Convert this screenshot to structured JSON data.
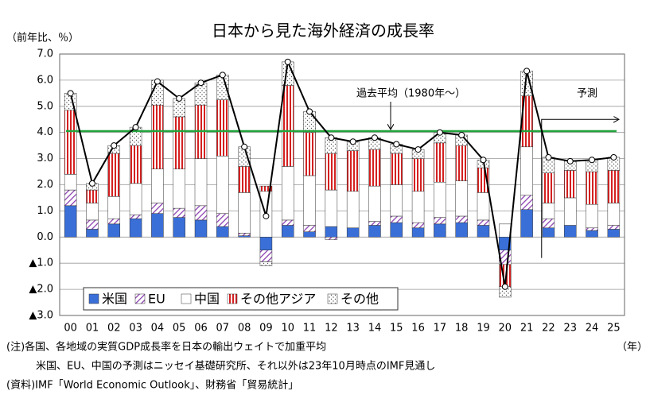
{
  "chart_data": {
    "type": "stacked-bar-line",
    "title": "日本から見た海外経済の成長率",
    "y_label": "（前年比、％）",
    "x_label": "（年）",
    "categories": [
      "00",
      "01",
      "02",
      "03",
      "04",
      "05",
      "06",
      "07",
      "08",
      "09",
      "10",
      "11",
      "12",
      "13",
      "14",
      "15",
      "16",
      "17",
      "18",
      "19",
      "20",
      "21",
      "22",
      "23",
      "24",
      "25"
    ],
    "series": [
      {
        "name": "米国",
        "color": "#3a6fd8",
        "style": "solid",
        "values": [
          1.2,
          0.3,
          0.5,
          0.7,
          0.9,
          0.75,
          0.65,
          0.4,
          0.05,
          -0.5,
          0.45,
          0.2,
          0.4,
          0.35,
          0.45,
          0.55,
          0.35,
          0.5,
          0.55,
          0.45,
          -0.5,
          1.05,
          0.35,
          0.45,
          0.25,
          0.3
        ]
      },
      {
        "name": "EU",
        "color": "#8a3cb0",
        "style": "hatch",
        "values": [
          0.6,
          0.35,
          0.2,
          0.15,
          0.4,
          0.35,
          0.55,
          0.5,
          0.1,
          -0.45,
          0.2,
          0.25,
          -0.1,
          0.0,
          0.15,
          0.25,
          0.2,
          0.25,
          0.25,
          0.2,
          -0.55,
          0.55,
          0.35,
          0.0,
          0.1,
          0.15
        ]
      },
      {
        "name": "中国",
        "color": "#ffffff",
        "style": "solid",
        "values": [
          0.6,
          0.65,
          0.85,
          1.2,
          1.3,
          1.5,
          1.8,
          2.2,
          1.55,
          1.75,
          2.05,
          1.9,
          1.4,
          1.4,
          1.35,
          1.2,
          1.2,
          1.35,
          1.35,
          1.05,
          0.5,
          1.85,
          0.6,
          1.05,
          0.9,
          0.85
        ]
      },
      {
        "name": "その他アジア",
        "color": "#d42020",
        "style": "stripe",
        "values": [
          2.45,
          0.5,
          1.65,
          1.45,
          2.45,
          2.0,
          2.05,
          2.15,
          1.0,
          0.2,
          3.1,
          1.65,
          1.4,
          1.55,
          1.4,
          1.2,
          1.25,
          1.5,
          1.35,
          0.95,
          -0.85,
          1.95,
          1.15,
          1.05,
          1.25,
          1.25
        ]
      },
      {
        "name": "その他",
        "color": "#555555",
        "style": "dot",
        "values": [
          0.65,
          0.25,
          0.3,
          0.7,
          0.95,
          0.7,
          0.85,
          0.95,
          0.75,
          -0.15,
          0.9,
          0.8,
          0.6,
          0.35,
          0.45,
          0.35,
          0.35,
          0.4,
          0.4,
          0.3,
          -0.4,
          0.95,
          0.6,
          0.35,
          0.45,
          0.5
        ]
      }
    ],
    "line_values": [
      5.5,
      2.05,
      3.5,
      4.2,
      5.95,
      5.3,
      5.9,
      6.2,
      3.45,
      0.8,
      6.7,
      4.8,
      3.8,
      3.65,
      3.8,
      3.55,
      3.35,
      4.0,
      3.9,
      2.95,
      -1.9,
      6.35,
      3.05,
      2.9,
      2.95,
      3.05
    ],
    "average": {
      "label": "過去平均（1980年～）",
      "value": 4.05,
      "color": "#22a33c"
    },
    "forecast_label": "予測",
    "ylim": [
      -3,
      7
    ],
    "yticks": [
      {
        "value": -3,
        "label": "▲3.0"
      },
      {
        "value": -2,
        "label": "▲2.0"
      },
      {
        "value": -1,
        "label": "▲1.0"
      },
      {
        "value": 0,
        "label": "0.0"
      },
      {
        "value": 1,
        "label": "1.0"
      },
      {
        "value": 2,
        "label": "2.0"
      },
      {
        "value": 3,
        "label": "3.0"
      },
      {
        "value": 4,
        "label": "4.0"
      },
      {
        "value": 5,
        "label": "5.0"
      },
      {
        "value": 6,
        "label": "6.0"
      },
      {
        "value": 7,
        "label": "7.0"
      }
    ],
    "grid": true,
    "notes": [
      "(注)各国、各地域の実質GDP成長率を日本の輸出ウェイトで加重平均",
      "米国、EU、中国の予測はニッセイ基礎研究所、それ以外は23年10月時点のIMF見通し",
      "(資料)IMF「World Economic Outlook」、財務省「貿易統計」"
    ]
  }
}
